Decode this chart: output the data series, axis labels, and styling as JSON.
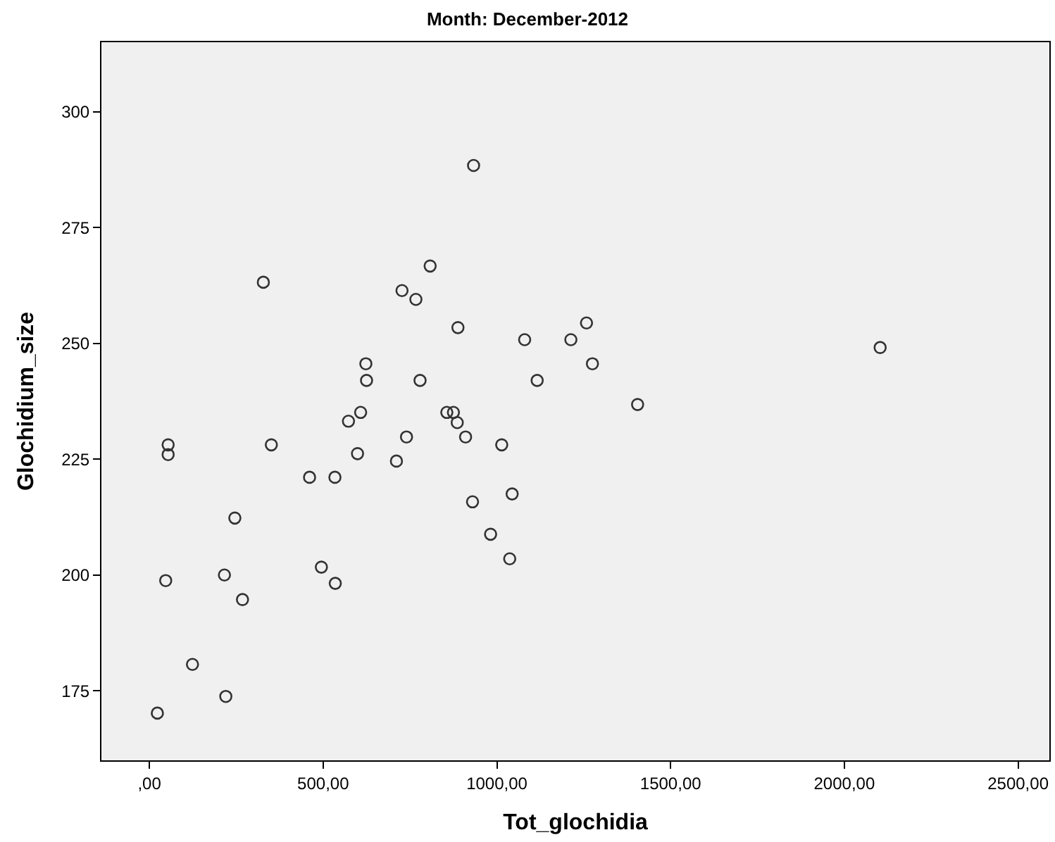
{
  "chart_data": {
    "type": "scatter",
    "title": "Month: December-2012",
    "xlabel": "Tot_glochidia",
    "ylabel": "Glochidium_size",
    "x": [
      23,
      220,
      124,
      47,
      216,
      268,
      246,
      54,
      54,
      351,
      461,
      534,
      495,
      535,
      573,
      608,
      599,
      623,
      625,
      711,
      740,
      779,
      856,
      875,
      886,
      888,
      910,
      930,
      982,
      1014,
      1044,
      1037,
      1080,
      1116,
      1258,
      1213,
      1275,
      1405,
      2103,
      933,
      808,
      727,
      767,
      328
    ],
    "values": [
      170.2,
      173.8,
      180.7,
      198.8,
      200,
      194.7,
      212.3,
      228.1,
      226.0,
      228.1,
      221.1,
      221.1,
      201.7,
      198.2,
      233.2,
      235.1,
      226.2,
      245.6,
      242.0,
      224.6,
      229.8,
      242.0,
      235.1,
      235.1,
      232.9,
      253.4,
      229.8,
      215.8,
      208.8,
      228.1,
      217.5,
      203.5,
      250.8,
      242.0,
      254.4,
      250.8,
      245.6,
      236.8,
      249.1,
      288.4,
      266.7,
      261.4,
      259.5,
      263.2
    ],
    "color": "#333333",
    "marker": "circle",
    "grid": false,
    "legend": false,
    "xlim": [
      -138,
      2590
    ],
    "ylim": [
      160,
      315
    ],
    "xticks": [
      {
        "value": 0,
        "label": ",00"
      },
      {
        "value": 500,
        "label": "500,00"
      },
      {
        "value": 1000,
        "label": "1000,00"
      },
      {
        "value": 1500,
        "label": "1500,00"
      },
      {
        "value": 2000,
        "label": "2000,00"
      },
      {
        "value": 2500,
        "label": "2500,00"
      }
    ],
    "yticks": [
      175,
      200,
      225,
      250,
      275,
      300
    ]
  }
}
